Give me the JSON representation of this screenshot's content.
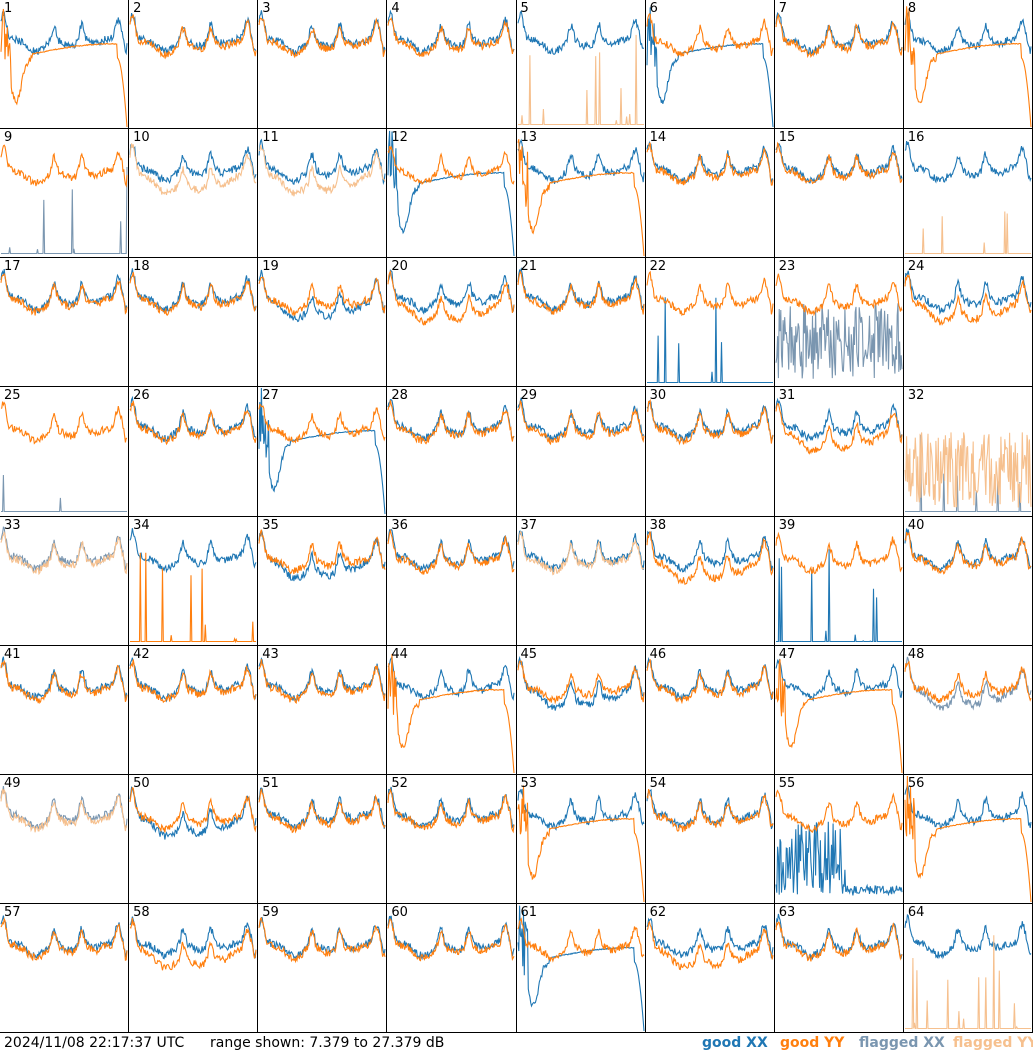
{
  "chart_data": {
    "type": "line",
    "layout": "8x8 small multiples",
    "timestamp": "2024/11/08 22:17:37 UTC",
    "range_label": "range shown: 7.379 to 27.379 dB",
    "ylim": [
      7.379,
      27.379
    ],
    "unit": "dB",
    "legend": [
      {
        "label": "good XX",
        "color": "#1f77b4"
      },
      {
        "label": "good YY",
        "color": "#ff7f0e"
      },
      {
        "label": "flagged XX",
        "color": "#7a96b0"
      },
      {
        "label": "flagged YY",
        "color": "#f6c08e"
      }
    ],
    "colors": {
      "xx": "#1f77b4",
      "yy": "#ff7f0e",
      "flagged_xx": "#7a96b0",
      "flagged_yy": "#f6c08e"
    },
    "panels": [
      {
        "id": "1",
        "xx": "normal",
        "yy": "dropout",
        "yy_flagged": false,
        "xx_flagged": false
      },
      {
        "id": "2",
        "xx": "normal",
        "yy": "normal"
      },
      {
        "id": "3",
        "xx": "normal",
        "yy": "normal"
      },
      {
        "id": "4",
        "xx": "normal",
        "yy": "normal"
      },
      {
        "id": "5",
        "xx": "normal",
        "yy": "spikes_flagged"
      },
      {
        "id": "6",
        "xx": "dropout",
        "yy": "normal"
      },
      {
        "id": "7",
        "xx": "normal",
        "yy": "normal"
      },
      {
        "id": "8",
        "xx": "normal",
        "yy": "dropout"
      },
      {
        "id": "9",
        "xx": "spikes_flagged",
        "yy": "normal"
      },
      {
        "id": "10",
        "xx": "normal",
        "yy": "low_flagged"
      },
      {
        "id": "11",
        "xx": "normal",
        "yy": "low_flagged"
      },
      {
        "id": "12",
        "xx": "dropout",
        "yy": "normal"
      },
      {
        "id": "13",
        "xx": "normal",
        "yy": "dropout"
      },
      {
        "id": "14",
        "xx": "normal",
        "yy": "normal"
      },
      {
        "id": "15",
        "xx": "normal",
        "yy": "normal"
      },
      {
        "id": "16",
        "xx": "normal",
        "yy": "spikes_flagged"
      },
      {
        "id": "17",
        "xx": "normal",
        "yy": "normal"
      },
      {
        "id": "18",
        "xx": "normal",
        "yy": "normal"
      },
      {
        "id": "19",
        "xx": "low",
        "yy": "normal"
      },
      {
        "id": "20",
        "xx": "normal",
        "yy": "low"
      },
      {
        "id": "21",
        "xx": "normal",
        "yy": "normal"
      },
      {
        "id": "22",
        "xx": "spikes",
        "yy": "normal"
      },
      {
        "id": "23",
        "xx": "noisy_flagged",
        "yy": "normal"
      },
      {
        "id": "24",
        "xx": "normal",
        "yy": "low"
      },
      {
        "id": "25",
        "xx": "spikes_flagged",
        "yy": "normal"
      },
      {
        "id": "26",
        "xx": "normal",
        "yy": "normal"
      },
      {
        "id": "27",
        "xx": "dropout",
        "yy": "normal"
      },
      {
        "id": "28",
        "xx": "normal",
        "yy": "normal"
      },
      {
        "id": "29",
        "xx": "normal",
        "yy": "normal"
      },
      {
        "id": "30",
        "xx": "normal",
        "yy": "normal"
      },
      {
        "id": "31",
        "xx": "normal",
        "yy": "low"
      },
      {
        "id": "32",
        "xx": "spikes_flagged",
        "yy": "noisy_flagged"
      },
      {
        "id": "33",
        "xx": "flagged",
        "yy": "flagged"
      },
      {
        "id": "34",
        "xx": "normal",
        "yy": "spikes"
      },
      {
        "id": "35",
        "xx": "low",
        "yy": "normal"
      },
      {
        "id": "36",
        "xx": "normal",
        "yy": "normal"
      },
      {
        "id": "37",
        "xx": "normal",
        "yy": "flagged"
      },
      {
        "id": "38",
        "xx": "normal",
        "yy": "low"
      },
      {
        "id": "39",
        "xx": "spikes",
        "yy": "normal"
      },
      {
        "id": "40",
        "xx": "normal",
        "yy": "normal"
      },
      {
        "id": "41",
        "xx": "normal",
        "yy": "normal"
      },
      {
        "id": "42",
        "xx": "normal",
        "yy": "normal"
      },
      {
        "id": "43",
        "xx": "normal",
        "yy": "normal"
      },
      {
        "id": "44",
        "xx": "normal",
        "yy": "dropout"
      },
      {
        "id": "45",
        "xx": "low",
        "yy": "normal"
      },
      {
        "id": "46",
        "xx": "normal",
        "yy": "normal"
      },
      {
        "id": "47",
        "xx": "normal",
        "yy": "dropout"
      },
      {
        "id": "48",
        "xx": "low_flagged",
        "yy": "normal"
      },
      {
        "id": "49",
        "xx": "flagged",
        "yy": "flagged"
      },
      {
        "id": "50",
        "xx": "low",
        "yy": "normal"
      },
      {
        "id": "51",
        "xx": "normal",
        "yy": "normal"
      },
      {
        "id": "52",
        "xx": "normal",
        "yy": "normal"
      },
      {
        "id": "53",
        "xx": "normal",
        "yy": "dropout"
      },
      {
        "id": "54",
        "xx": "normal",
        "yy": "normal"
      },
      {
        "id": "55",
        "xx": "noisy_spikes",
        "yy": "normal"
      },
      {
        "id": "56",
        "xx": "normal",
        "yy": "dropout"
      },
      {
        "id": "57",
        "xx": "normal",
        "yy": "normal"
      },
      {
        "id": "58",
        "xx": "normal",
        "yy": "low"
      },
      {
        "id": "59",
        "xx": "normal",
        "yy": "normal"
      },
      {
        "id": "60",
        "xx": "normal",
        "yy": "normal"
      },
      {
        "id": "61",
        "xx": "dropout",
        "yy": "normal"
      },
      {
        "id": "62",
        "xx": "normal",
        "yy": "low"
      },
      {
        "id": "63",
        "xx": "normal",
        "yy": "normal"
      },
      {
        "id": "64",
        "xx": "normal",
        "yy": "spikes_flagged"
      }
    ]
  }
}
